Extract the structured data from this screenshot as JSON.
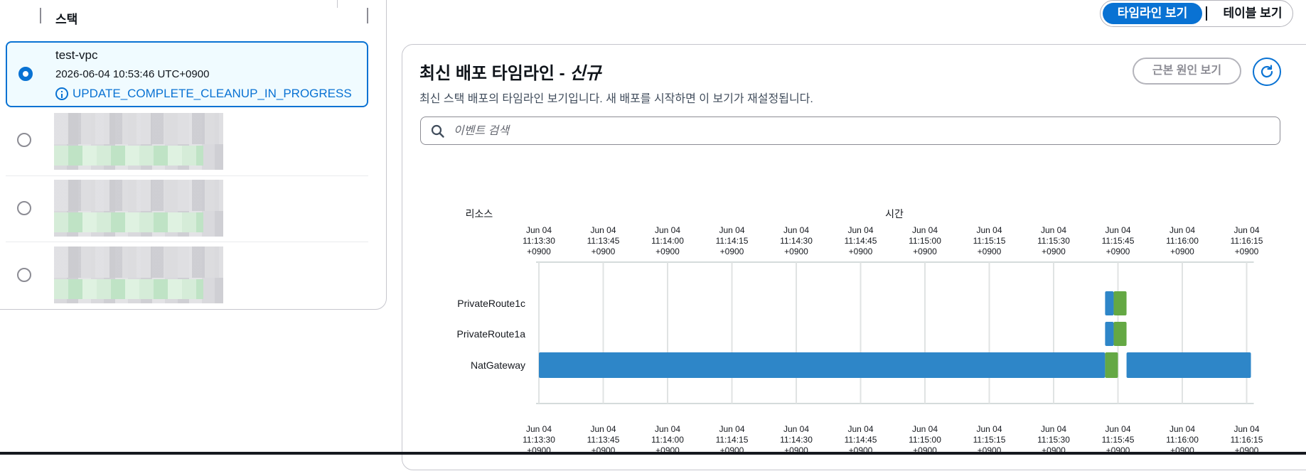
{
  "stack_list": {
    "column_header": "스택",
    "selected_stack": {
      "name": "test-vpc",
      "timestamp": "2026-06-04 10:53:46 UTC+0900",
      "status": "UPDATE_COMPLETE_CLEANUP_IN_PROGRESS",
      "status_icon": "info-icon"
    },
    "other_rows": [
      {
        "obscured": true
      },
      {
        "obscured": true
      },
      {
        "obscured": true
      }
    ]
  },
  "view_toggle": {
    "timeline_label": "타임라인 보기",
    "table_label": "테이블 보기",
    "active": "timeline"
  },
  "timeline_panel": {
    "title": "최신 배포 타임라인 - ",
    "title_suffix": "신규",
    "description": "최신 스택 배포의 타임라인 보기입니다. 새 배포를 시작하면 이 보기가 재설정됩니다.",
    "root_cause_button": "근본 원인 보기",
    "refresh_icon": "refresh-icon",
    "search_placeholder": "이벤트 검색",
    "search_icon": "search-icon"
  },
  "colors": {
    "primary": "#0972d3",
    "in_progress_bar": "#2e86c8",
    "complete_bar": "#64a844"
  },
  "chart_data": {
    "type": "timeline",
    "resource_axis_label": "리소스",
    "time_axis_label": "시간",
    "tick_labels": [
      [
        "Jun 04",
        "11:13:30",
        "+0900"
      ],
      [
        "Jun 04",
        "11:13:45",
        "+0900"
      ],
      [
        "Jun 04",
        "11:14:00",
        "+0900"
      ],
      [
        "Jun 04",
        "11:14:15",
        "+0900"
      ],
      [
        "Jun 04",
        "11:14:30",
        "+0900"
      ],
      [
        "Jun 04",
        "11:14:45",
        "+0900"
      ],
      [
        "Jun 04",
        "11:15:00",
        "+0900"
      ],
      [
        "Jun 04",
        "11:15:15",
        "+0900"
      ],
      [
        "Jun 04",
        "11:15:30",
        "+0900"
      ],
      [
        "Jun 04",
        "11:15:45",
        "+0900"
      ],
      [
        "Jun 04",
        "11:16:00",
        "+0900"
      ],
      [
        "Jun 04",
        "11:16:15",
        "+0900"
      ]
    ],
    "time_range": [
      "11:13:30",
      "11:16:15"
    ],
    "resources": [
      {
        "name": "PrivateRoute1c",
        "segments": [
          {
            "state": "in_progress",
            "start": "11:15:42",
            "end": "11:15:44"
          },
          {
            "state": "complete",
            "start": "11:15:44",
            "end": "11:15:47"
          }
        ]
      },
      {
        "name": "PrivateRoute1a",
        "segments": [
          {
            "state": "in_progress",
            "start": "11:15:42",
            "end": "11:15:44"
          },
          {
            "state": "complete",
            "start": "11:15:44",
            "end": "11:15:47"
          }
        ]
      },
      {
        "name": "NatGateway",
        "segments": [
          {
            "state": "in_progress",
            "start": "11:13:30",
            "end": "11:15:42"
          },
          {
            "state": "complete",
            "start": "11:15:42",
            "end": "11:15:45"
          },
          {
            "state": "in_progress",
            "start": "11:15:47",
            "end": "11:16:16"
          }
        ]
      }
    ]
  }
}
